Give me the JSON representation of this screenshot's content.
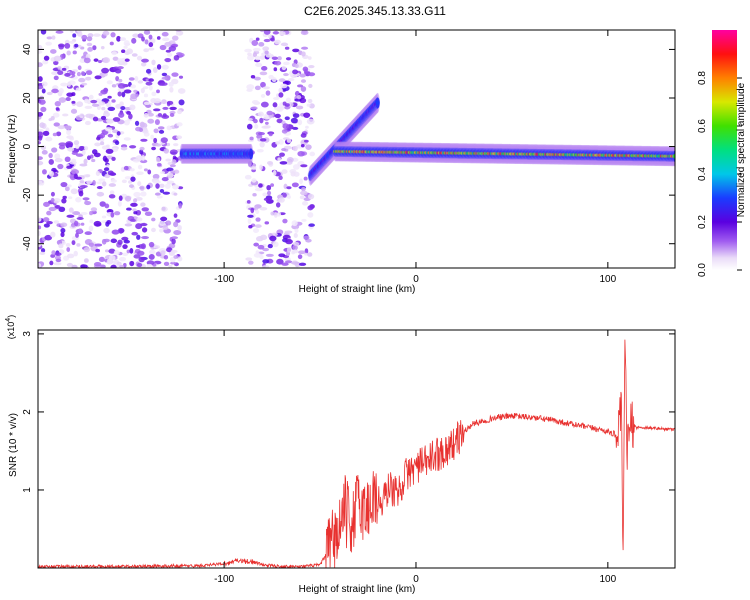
{
  "page_title": "C2E6.2025.345.13.33.G11",
  "chart_data": [
    {
      "type": "heatmap",
      "xlabel": "Height of straight line (km)",
      "ylabel": "Frequency (Hz)",
      "xlim": [
        -197,
        135
      ],
      "ylim": [
        -50,
        48
      ],
      "xticks": [
        -100,
        0,
        100
      ],
      "yticks": [
        -40,
        -20,
        0,
        20,
        40
      ],
      "colorbar": {
        "label": "Normalized spectral amplitude",
        "ticks": [
          "0.0",
          "0.2",
          "0.4",
          "0.6",
          "0.8"
        ],
        "range": [
          0,
          1
        ],
        "colormap": "rainbow (white-violet-blue-cyan-green-yellow-red-magenta)"
      },
      "features": [
        {
          "description": "noise scatter",
          "x_range": [
            -197,
            -122
          ],
          "freq_range": [
            -50,
            48
          ],
          "amplitude": 0.05
        },
        {
          "description": "noise scatter",
          "x_range": [
            -88,
            -54
          ],
          "freq_range": [
            -50,
            48
          ],
          "amplitude": 0.05
        },
        {
          "description": "signal band",
          "x_range": [
            -122,
            -86
          ],
          "freq_center": -3,
          "amplitude": 0.4
        },
        {
          "description": "signal transition",
          "x_range": [
            -55,
            -20
          ],
          "freq_start": -12,
          "freq_end": 18,
          "amplitude": 0.3
        },
        {
          "description": "carrier",
          "x_range": [
            -42,
            135
          ],
          "freq_start": -2,
          "freq_end": -4,
          "amplitude": 0.9
        }
      ]
    },
    {
      "type": "line",
      "xlabel": "Height of straight line (km)",
      "ylabel": "SNR (10 * v/v)",
      "scale_note": "(x10",
      "scale_exp": "4",
      "xlim": [
        -197,
        135
      ],
      "ylim": [
        0,
        3.05
      ],
      "xticks": [
        -100,
        0,
        100
      ],
      "yticks": [
        1,
        2,
        3
      ],
      "line_color": "#e8312f",
      "series": [
        {
          "x": [
            -197,
            -150,
            -110,
            -100,
            -92,
            -85,
            -80,
            -70,
            -60,
            -50,
            -45,
            -40,
            -37,
            -34,
            -30,
            -26,
            -22,
            -18,
            -14,
            -10,
            -5,
            0,
            5,
            10,
            15,
            20,
            25,
            30,
            40,
            50,
            60,
            70,
            80,
            90,
            95,
            100,
            105,
            107,
            108,
            109,
            110,
            112,
            115,
            120,
            125,
            130,
            135
          ],
          "y": [
            0.02,
            0.02,
            0.03,
            0.06,
            0.1,
            0.08,
            0.04,
            0.02,
            0.02,
            0.04,
            0.25,
            0.5,
            0.75,
            0.55,
            0.85,
            0.7,
            0.95,
            0.8,
            1.05,
            0.95,
            1.2,
            1.3,
            1.35,
            1.45,
            1.5,
            1.6,
            1.75,
            1.85,
            1.92,
            1.95,
            1.93,
            1.9,
            1.85,
            1.8,
            1.78,
            1.75,
            1.7,
            2.0,
            0.1,
            3.0,
            1.5,
            1.85,
            1.8,
            1.8,
            1.79,
            1.78,
            1.78
          ]
        }
      ]
    }
  ]
}
